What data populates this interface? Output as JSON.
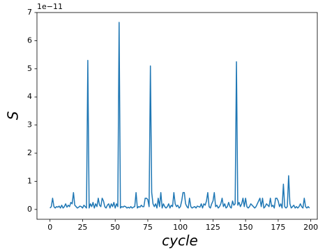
{
  "chart_data": {
    "type": "line",
    "x_label": "cycle",
    "y_label": "S",
    "y_offset_text": "1e−11",
    "x": [
      0,
      1,
      2,
      3,
      4,
      5,
      6,
      7,
      8,
      9,
      10,
      11,
      12,
      13,
      14,
      15,
      16,
      17,
      18,
      19,
      20,
      21,
      22,
      23,
      24,
      25,
      26,
      27,
      28,
      29,
      30,
      31,
      32,
      33,
      34,
      35,
      36,
      37,
      38,
      39,
      40,
      41,
      42,
      43,
      44,
      45,
      46,
      47,
      48,
      49,
      50,
      51,
      52,
      53,
      54,
      55,
      56,
      57,
      58,
      59,
      60,
      61,
      62,
      63,
      64,
      65,
      66,
      67,
      68,
      69,
      70,
      71,
      72,
      73,
      74,
      75,
      76,
      77,
      78,
      79,
      80,
      81,
      82,
      83,
      84,
      85,
      86,
      87,
      88,
      89,
      90,
      91,
      92,
      93,
      94,
      95,
      96,
      97,
      98,
      99,
      100,
      101,
      102,
      103,
      104,
      105,
      106,
      107,
      108,
      109,
      110,
      111,
      112,
      113,
      114,
      115,
      116,
      117,
      118,
      119,
      120,
      121,
      122,
      123,
      124,
      125,
      126,
      127,
      128,
      129,
      130,
      131,
      132,
      133,
      134,
      135,
      136,
      137,
      138,
      139,
      140,
      141,
      142,
      143,
      144,
      145,
      146,
      147,
      148,
      149,
      150,
      151,
      152,
      153,
      154,
      155,
      156,
      157,
      158,
      159,
      160,
      161,
      162,
      163,
      164,
      165,
      166,
      167,
      168,
      169,
      170,
      171,
      172,
      173,
      174,
      175,
      176,
      177,
      178,
      179,
      180,
      181,
      182,
      183,
      184,
      185,
      186,
      187,
      188,
      189,
      190,
      191,
      192,
      193,
      194,
      195,
      196,
      197,
      198,
      199
    ],
    "series": [
      {
        "color": "#1f77b4",
        "values": [
          0.05,
          0.1,
          0.4,
          0.1,
          0.05,
          0.1,
          0.08,
          0.12,
          0.05,
          0.15,
          0.05,
          0.1,
          0.2,
          0.08,
          0.15,
          0.1,
          0.25,
          0.2,
          0.6,
          0.15,
          0.1,
          0.05,
          0.08,
          0.12,
          0.1,
          0.05,
          0.15,
          0.1,
          0.05,
          5.3,
          0.05,
          0.2,
          0.1,
          0.25,
          0.05,
          0.2,
          0.1,
          0.4,
          0.15,
          0.1,
          0.4,
          0.3,
          0.1,
          0.05,
          0.15,
          0.2,
          0.05,
          0.2,
          0.1,
          0.25,
          0.05,
          0.2,
          0.1,
          6.65,
          0.05,
          0.1,
          0.08,
          0.12,
          0.1,
          0.05,
          0.08,
          0.05,
          0.1,
          0.05,
          0.08,
          0.1,
          0.6,
          0.05,
          0.1,
          0.08,
          0.15,
          0.1,
          0.1,
          0.4,
          0.4,
          0.35,
          0.1,
          5.1,
          0.6,
          0.2,
          0.1,
          0.2,
          0.05,
          0.4,
          0.1,
          0.6,
          0.05,
          0.2,
          0.1,
          0.05,
          0.1,
          0.2,
          0.05,
          0.15,
          0.1,
          0.6,
          0.2,
          0.1,
          0.15,
          0.05,
          0.1,
          0.3,
          0.6,
          0.6,
          0.2,
          0.1,
          0.05,
          0.4,
          0.1,
          0.05,
          0.08,
          0.1,
          0.05,
          0.12,
          0.1,
          0.08,
          0.2,
          0.05,
          0.2,
          0.15,
          0.3,
          0.6,
          0.1,
          0.05,
          0.2,
          0.3,
          0.6,
          0.1,
          0.15,
          0.05,
          0.1,
          0.2,
          0.4,
          0.1,
          0.2,
          0.05,
          0.1,
          0.25,
          0.1,
          0.05,
          0.3,
          0.15,
          0.2,
          5.25,
          0.15,
          0.25,
          0.1,
          0.2,
          0.4,
          0.1,
          0.4,
          0.1,
          0.05,
          0.1,
          0.2,
          0.15,
          0.1,
          0.05,
          0.1,
          0.2,
          0.3,
          0.4,
          0.1,
          0.4,
          0.05,
          0.1,
          0.2,
          0.15,
          0.1,
          0.4,
          0.1,
          0.15,
          0.05,
          0.4,
          0.4,
          0.3,
          0.1,
          0.2,
          0.05,
          0.9,
          0.1,
          0.05,
          0.1,
          1.2,
          0.2,
          0.05,
          0.1,
          0.15,
          0.05,
          0.1,
          0.05,
          0.1,
          0.2,
          0.1,
          0.05,
          0.4,
          0.1,
          0.05,
          0.1,
          0.05
        ]
      }
    ],
    "xlim": [
      -10,
      205
    ],
    "ylim": [
      -0.35,
      7
    ],
    "xticks": [
      0,
      25,
      50,
      75,
      100,
      125,
      150,
      175,
      200
    ],
    "yticks": [
      0,
      1,
      2,
      3,
      4,
      5,
      6,
      7
    ]
  }
}
